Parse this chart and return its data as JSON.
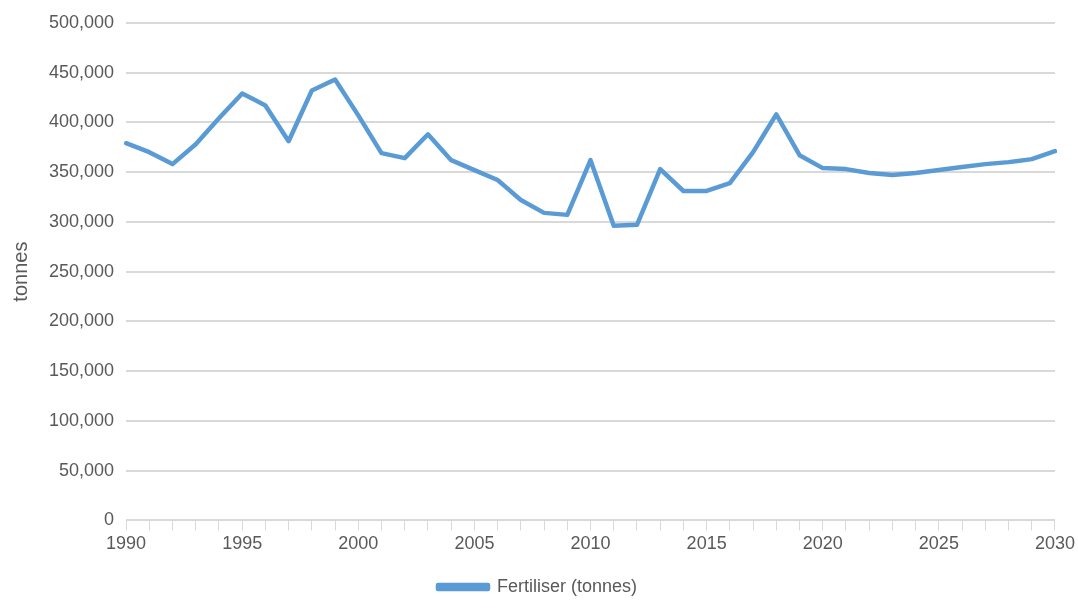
{
  "chart_data": {
    "type": "line",
    "ylabel": "tonnes",
    "categories": [
      "1990",
      null,
      null,
      null,
      null,
      "1995",
      null,
      null,
      null,
      null,
      "2000",
      null,
      null,
      null,
      null,
      "2005",
      null,
      null,
      null,
      null,
      "2010",
      null,
      null,
      null,
      null,
      "2015",
      null,
      null,
      null,
      null,
      "2020",
      null,
      null,
      null,
      null,
      "2025",
      null,
      null,
      null,
      null,
      "2030"
    ],
    "series": [
      {
        "name": "Fertiliser (tonnes)",
        "color": "#5b9bd5",
        "values": [
          379000,
          370000,
          358000,
          378000,
          404000,
          429000,
          417000,
          381000,
          432000,
          443000,
          407000,
          369000,
          364000,
          388000,
          362000,
          352000,
          342000,
          322000,
          309000,
          307000,
          362000,
          296000,
          297000,
          353000,
          331000,
          331000,
          339000,
          370000,
          408000,
          367000,
          354000,
          353000,
          349000,
          347000,
          349000,
          352000,
          355000,
          358000,
          360000,
          363000,
          371000
        ]
      }
    ],
    "ylim": [
      0,
      500000
    ],
    "yticks": [
      0,
      {
        "value": 50000,
        "label": "50,000"
      },
      {
        "value": 100000,
        "label": "100,000"
      },
      {
        "value": 150000,
        "label": "150,000"
      },
      {
        "value": 200000,
        "label": "200,000"
      },
      {
        "value": 250000,
        "label": "250,000"
      },
      {
        "value": 300000,
        "label": "300,000"
      },
      {
        "value": 350000,
        "label": "350,000"
      },
      {
        "value": 400000,
        "label": "400,000"
      },
      {
        "value": 450000,
        "label": "450,000"
      },
      {
        "value": 500000,
        "label": "500,000"
      }
    ],
    "grid": "y",
    "legend": "bottom",
    "marker": "none",
    "line_style": "solid"
  }
}
